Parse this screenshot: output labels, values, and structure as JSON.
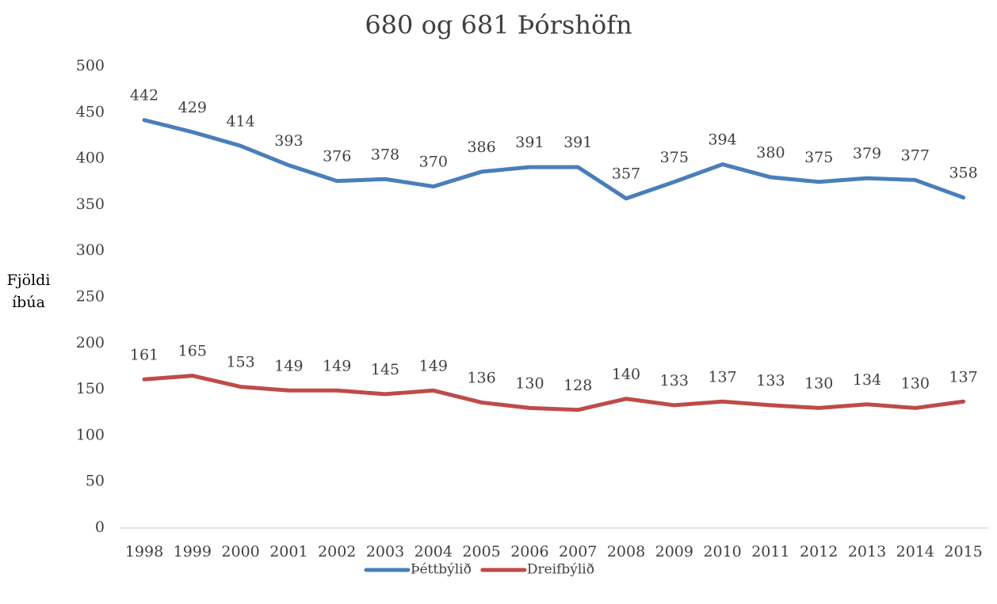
{
  "chart_data": {
    "type": "line",
    "title": "680 og 681 Þórshöfn",
    "y_label": "Fjöldi íbúa",
    "categories": [
      "1998",
      "1999",
      "2000",
      "2001",
      "2002",
      "2003",
      "2004",
      "2005",
      "2006",
      "2007",
      "2008",
      "2009",
      "2010",
      "2011",
      "2012",
      "2013",
      "2014",
      "2015"
    ],
    "series": [
      {
        "name": "Þéttbýlið",
        "color": "#4a7ebb",
        "values": [
          442,
          429,
          414,
          393,
          376,
          378,
          370,
          386,
          391,
          391,
          357,
          375,
          394,
          380,
          375,
          379,
          377,
          358
        ]
      },
      {
        "name": "Dreifbýlið",
        "color": "#be4b48",
        "values": [
          161,
          165,
          153,
          149,
          149,
          145,
          149,
          136,
          130,
          128,
          140,
          133,
          137,
          133,
          130,
          134,
          130,
          137
        ]
      }
    ],
    "ylim": [
      0,
      500
    ],
    "yticks": [
      0,
      50,
      100,
      150,
      200,
      250,
      300,
      350,
      400,
      450,
      500
    ],
    "grid": false,
    "legend": "bottom"
  }
}
